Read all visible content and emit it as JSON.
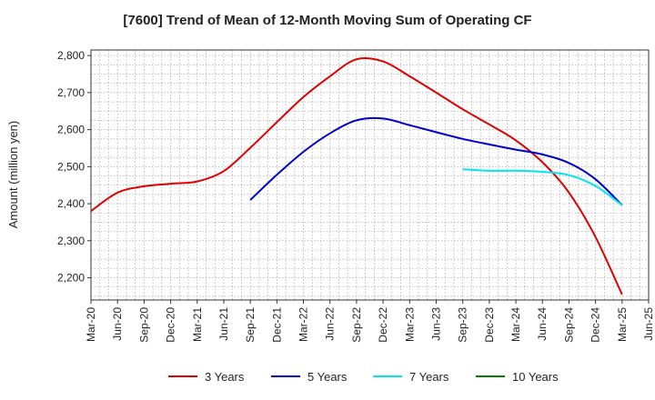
{
  "chart_data": {
    "type": "line",
    "title": "[7600]  Trend of Mean of 12-Month Moving Sum of Operating CF",
    "xlabel": "",
    "ylabel": "Amount (million yen)",
    "ylim": [
      2140,
      2815
    ],
    "yticks": [
      2200,
      2300,
      2400,
      2500,
      2600,
      2700,
      2800
    ],
    "ytick_labels": [
      "2,200",
      "2,300",
      "2,400",
      "2,500",
      "2,600",
      "2,700",
      "2,800"
    ],
    "x_tick_labels": [
      "Mar-20",
      "Jun-20",
      "Sep-20",
      "Dec-20",
      "Mar-21",
      "Jun-21",
      "Sep-21",
      "Dec-21",
      "Mar-22",
      "Jun-22",
      "Sep-22",
      "Dec-22",
      "Mar-23",
      "Jun-23",
      "Sep-23",
      "Dec-23",
      "Mar-24",
      "Jun-24",
      "Sep-24",
      "Dec-24",
      "Mar-25",
      "Jun-25"
    ],
    "x_range_months": [
      0,
      63
    ],
    "grid": true,
    "legend_position": "bottom",
    "series": [
      {
        "name": "3 Years",
        "color": "#e00000",
        "x_months": [
          0,
          3,
          6,
          9,
          12,
          15,
          18,
          21,
          24,
          27,
          30,
          33,
          36,
          39,
          42,
          45,
          48,
          51,
          54,
          57,
          60
        ],
        "values": [
          2380,
          2430,
          2447,
          2454,
          2460,
          2488,
          2551,
          2620,
          2688,
          2744,
          2790,
          2784,
          2744,
          2700,
          2655,
          2614,
          2571,
          2512,
          2430,
          2310,
          2155
        ]
      },
      {
        "name": "5 Years",
        "color": "#0000cc",
        "x_months": [
          18,
          21,
          24,
          27,
          30,
          33,
          36,
          39,
          42,
          45,
          48,
          51,
          54,
          57,
          60
        ],
        "values": [
          2410,
          2478,
          2540,
          2590,
          2625,
          2630,
          2612,
          2593,
          2575,
          2560,
          2546,
          2533,
          2510,
          2466,
          2396
        ]
      },
      {
        "name": "7 Years",
        "color": "#00e5ee",
        "x_months": [
          42,
          45,
          48,
          51,
          54,
          57,
          60
        ],
        "values": [
          2493,
          2489,
          2489,
          2486,
          2477,
          2448,
          2396
        ]
      },
      {
        "name": "10 Years",
        "color": "#008000",
        "x_months": [],
        "values": []
      }
    ]
  }
}
